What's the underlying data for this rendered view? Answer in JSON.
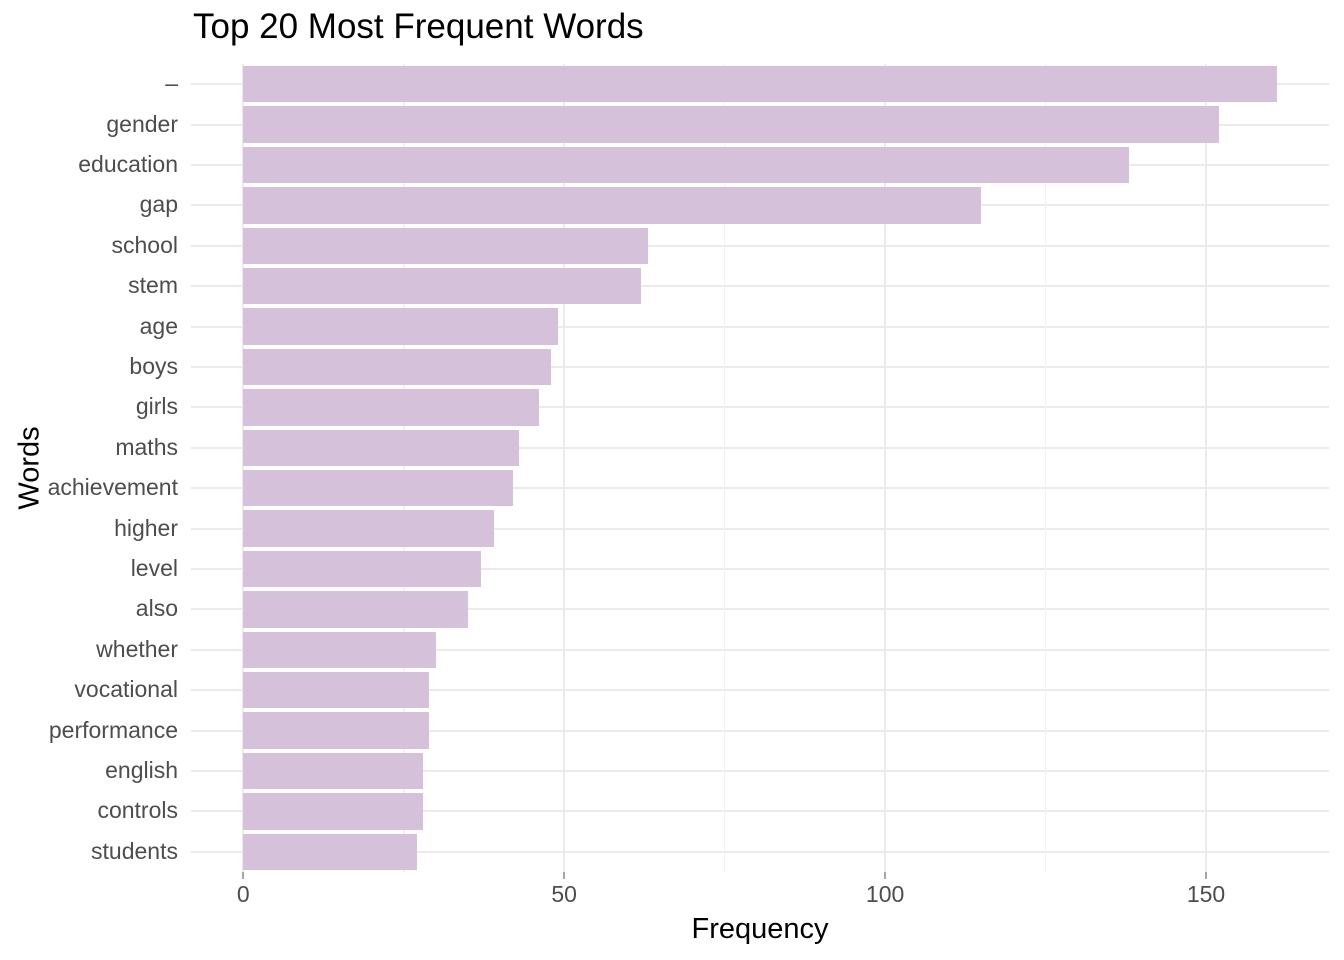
{
  "chart_data": {
    "type": "bar",
    "orientation": "horizontal",
    "title": "Top 20 Most Frequent Words",
    "xlabel": "Frequency",
    "ylabel": "Words",
    "categories": [
      "–",
      "gender",
      "education",
      "gap",
      "school",
      "stem",
      "age",
      "boys",
      "girls",
      "maths",
      "achievement",
      "higher",
      "level",
      "also",
      "whether",
      "vocational",
      "performance",
      "english",
      "controls",
      "students"
    ],
    "values": [
      161,
      152,
      138,
      115,
      63,
      62,
      49,
      48,
      46,
      43,
      42,
      39,
      37,
      35,
      30,
      29,
      29,
      28,
      28,
      27
    ],
    "x_ticks": [
      0,
      50,
      100,
      150
    ],
    "x_tick_labels": [
      "0",
      "50",
      "100",
      "150"
    ],
    "x_minor_ticks": [
      25,
      75,
      125
    ],
    "xlim": [
      0,
      169
    ],
    "grid": "major+minor",
    "legend": "none",
    "bar_color": "#D5C2DA",
    "grid_major_color": "#EBEBEB",
    "grid_minor_color": "#F1F1F1",
    "axis_text_color": "#4D4D4D",
    "title_color": "#000000"
  }
}
